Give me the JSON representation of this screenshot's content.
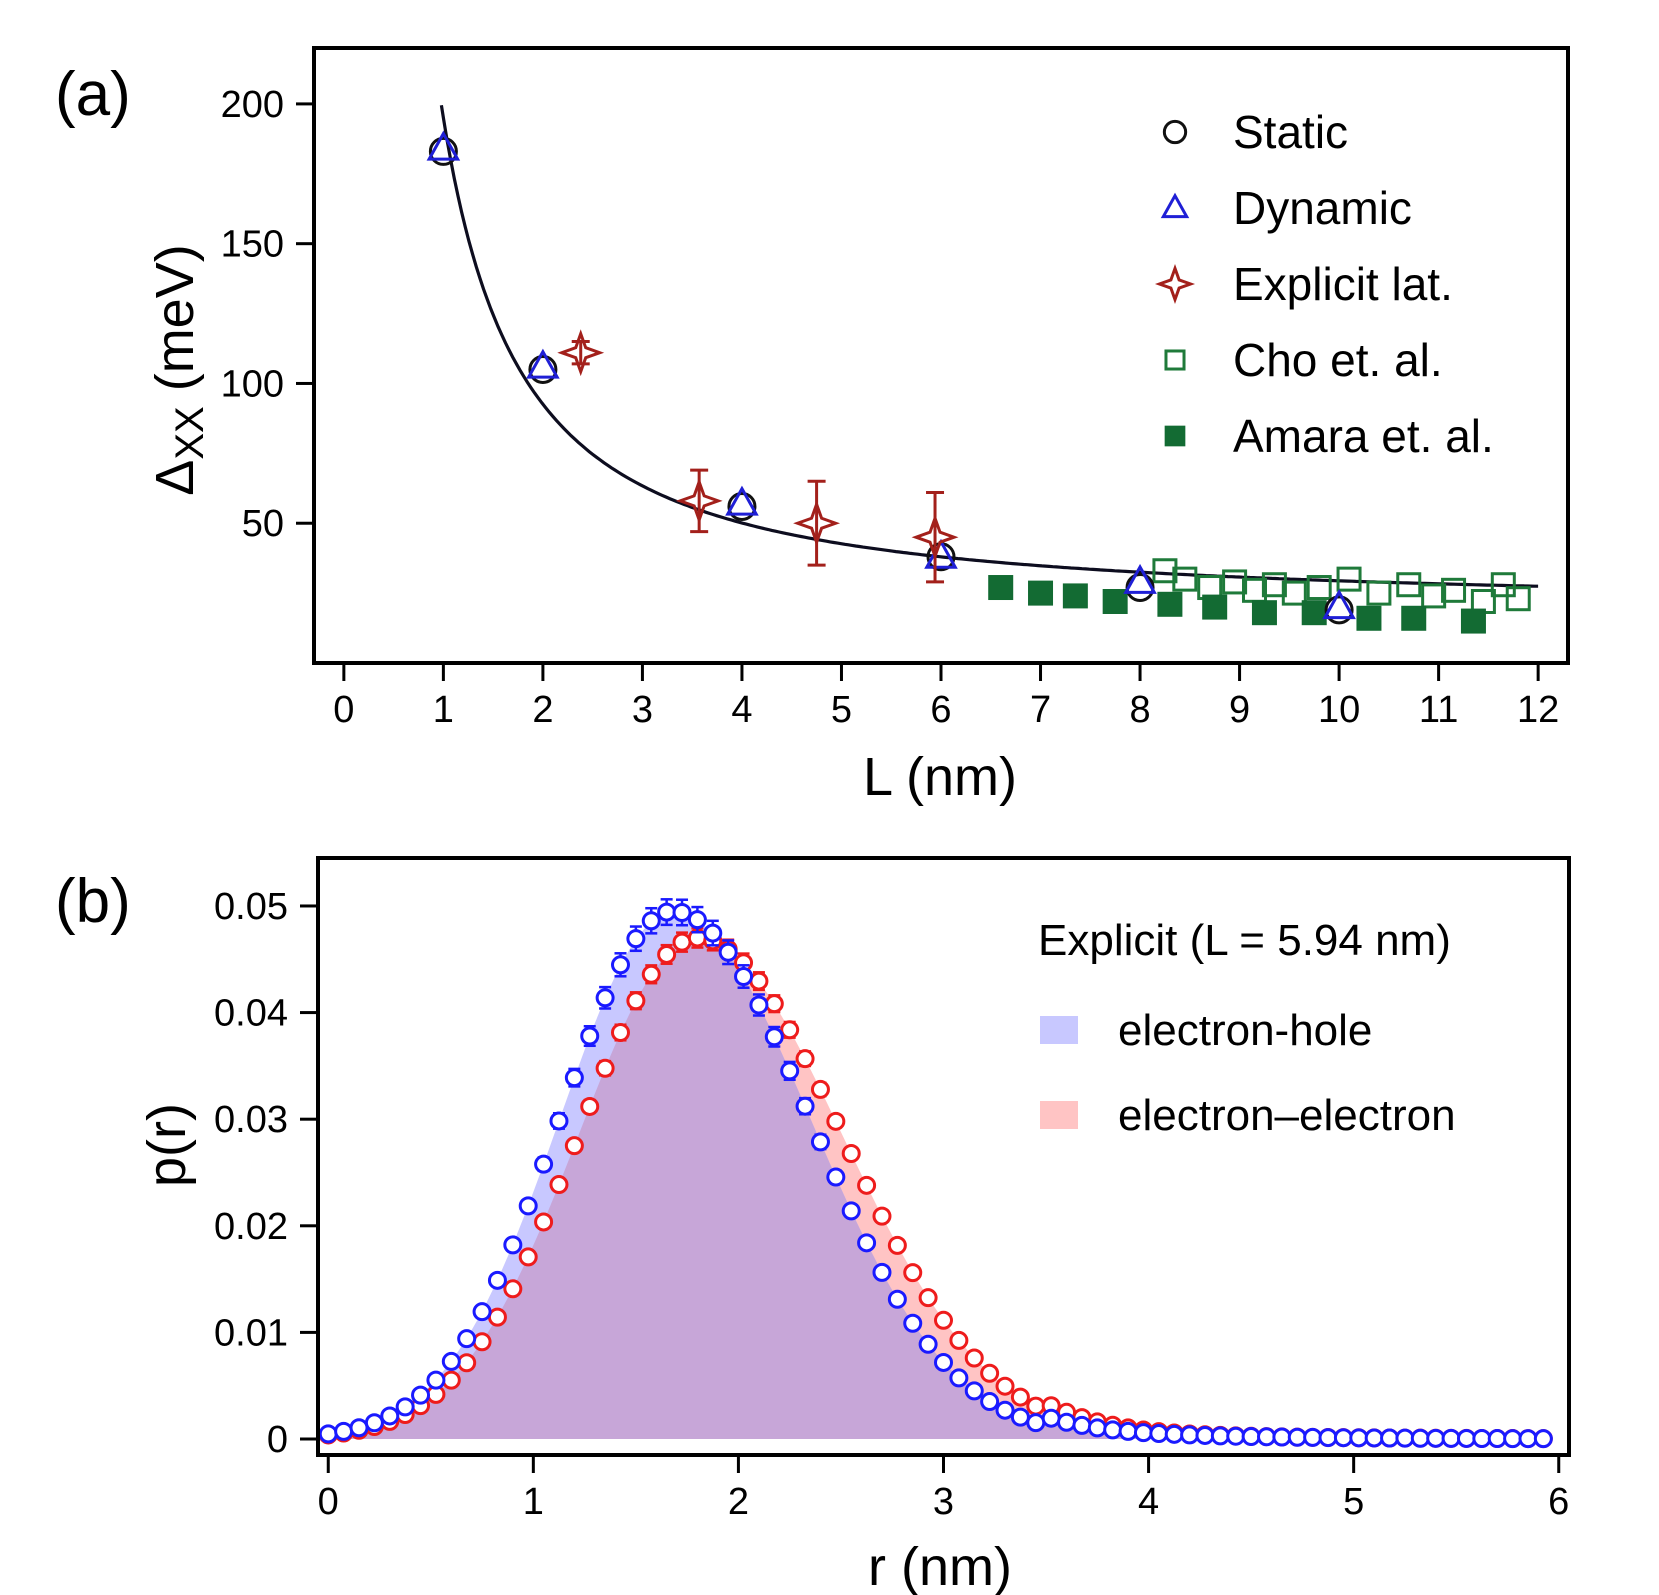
{
  "chart_data": [
    {
      "panel_label": "(a)",
      "type": "scatter",
      "xlabel": "L (nm)",
      "ylabel_main": "Δ",
      "ylabel_sub": "XX",
      "ylabel_unit": " (meV)",
      "xlim": [
        -0.3,
        12.3
      ],
      "ylim": [
        0,
        220
      ],
      "xticks": [
        "0",
        "1",
        "2",
        "3",
        "4",
        "5",
        "6",
        "7",
        "8",
        "9",
        "10",
        "11",
        "12"
      ],
      "yticks": [
        "50",
        "100",
        "150",
        "200"
      ],
      "legend_position": "top-right",
      "fit_curve": {
        "description": "power-law fit",
        "color": "#0d0d1f",
        "x_range": [
          1.0,
          12.0
        ],
        "form": "a*L^-b + c",
        "a": 175,
        "b": 1.27,
        "c": 20
      },
      "series": [
        {
          "name": "Static",
          "marker": "circle-open",
          "color": "#111111",
          "x": [
            1,
            2,
            4,
            6,
            8,
            10
          ],
          "y": [
            183,
            105,
            56,
            38,
            27,
            19
          ]
        },
        {
          "name": "Dynamic",
          "marker": "triangle-open",
          "color": "#1f1fd6",
          "x": [
            1,
            2,
            4,
            6,
            8,
            10
          ],
          "y": [
            184,
            106,
            57,
            38,
            29,
            20
          ]
        },
        {
          "name": "Explicit lat.",
          "marker": "star4-open",
          "color": "#a3201b",
          "x": [
            2.38,
            3.57,
            4.75,
            5.94
          ],
          "y": [
            111,
            58,
            50,
            45
          ],
          "yerr": [
            4,
            11,
            15,
            16
          ]
        },
        {
          "name": "Cho et. al.",
          "marker": "square-open",
          "color": "#1f7a3a",
          "x": [
            8.25,
            8.45,
            8.7,
            8.95,
            9.15,
            9.35,
            9.55,
            9.8,
            10.1,
            10.4,
            10.7,
            10.95,
            11.15,
            11.45,
            11.65,
            11.8
          ],
          "y": [
            33,
            30,
            27,
            29,
            26,
            28,
            25,
            27,
            30,
            25,
            28,
            24,
            26,
            22,
            28,
            23
          ]
        },
        {
          "name": "Amara et. al.",
          "marker": "square-filled",
          "color": "#136b33",
          "x": [
            6.6,
            7.0,
            7.35,
            7.75,
            8.3,
            8.75,
            9.25,
            9.75,
            10.3,
            10.75,
            11.35
          ],
          "y": [
            27,
            25,
            24,
            22,
            21,
            20,
            18,
            18,
            16,
            16,
            15
          ]
        }
      ]
    },
    {
      "panel_label": "(b)",
      "type": "area",
      "xlabel": "r (nm)",
      "ylabel": "p(r)",
      "xlim": [
        -0.05,
        6.05
      ],
      "ylim": [
        -0.0015,
        0.0545
      ],
      "xticks": [
        "0",
        "1",
        "2",
        "3",
        "4",
        "5",
        "6"
      ],
      "yticks": [
        "0",
        "0.01",
        "0.02",
        "0.03",
        "0.04",
        "0.05"
      ],
      "legend_title": "Explicit (L = 5.94 nm)",
      "legend_position": "top-right",
      "series": [
        {
          "name": "electron-hole",
          "color": "#1a1aff",
          "fill": "#c8c8ff",
          "model": {
            "form": "gaussian-like",
            "peak_x": 1.68,
            "peak_y": 0.0495,
            "width_left": 0.78,
            "width_right": 0.95,
            "tail_decay": 0.7
          },
          "x_step": 0.075,
          "x_max": 5.95,
          "errorbar_max": 0.0012
        },
        {
          "name": "electron–electron",
          "color": "#ee1c1c",
          "fill": "#ffc4c4",
          "model": {
            "form": "gaussian-like",
            "peak_x": 1.8,
            "peak_y": 0.047,
            "width_left": 0.82,
            "width_right": 1.0,
            "tail_decay": 0.75
          },
          "x_step": 0.075,
          "x_max": 5.95,
          "errorbar_max": 0.0009
        }
      ],
      "overlap_fill": "#c7a6d8"
    }
  ]
}
